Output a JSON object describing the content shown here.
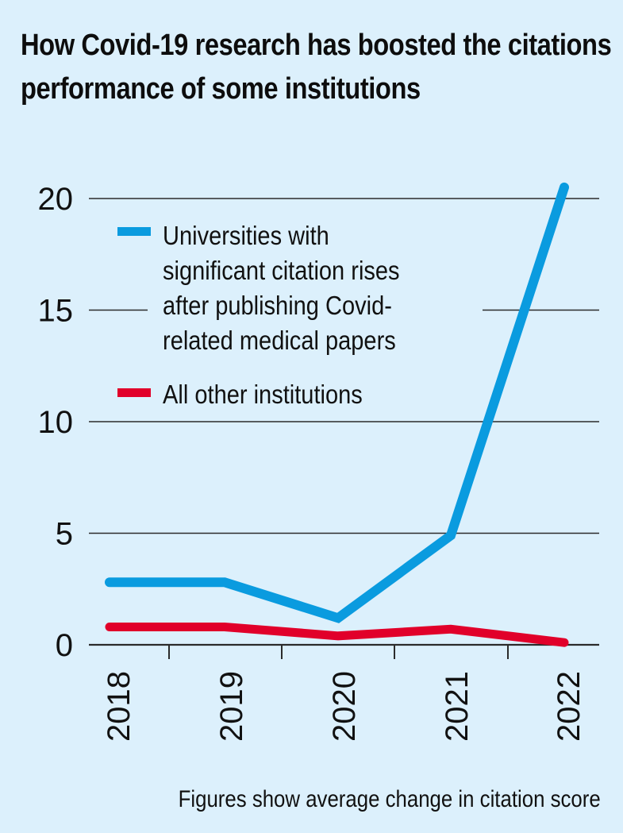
{
  "title": "How Covid-19 research has boosted the citations performance of some institutions",
  "footnote": "Figures show average change in citation score",
  "colors": {
    "background": "#dcf0fc",
    "series_universities": "#0a9bdf",
    "series_others": "#e1002a",
    "gridline": "#2b2b2b"
  },
  "legend": {
    "items": [
      {
        "label_lines": [
          "Universities with",
          "significant citation rises",
          "after publishing Covid-",
          "related medical papers"
        ],
        "color": "#0a9bdf"
      },
      {
        "label_lines": [
          "All other institutions"
        ],
        "color": "#e1002a"
      }
    ]
  },
  "chart_data": {
    "type": "line",
    "title": "How Covid-19 research has boosted the citations performance of some institutions",
    "subtitle": "",
    "xlabel": "",
    "ylabel": "",
    "note": "Figures show average change in citation score",
    "categories": [
      "2018",
      "2019",
      "2020",
      "2021",
      "2022"
    ],
    "series": [
      {
        "name": "Universities with significant citation rises after publishing Covid-related medical papers",
        "color": "#0a9bdf",
        "values": [
          2.8,
          2.8,
          1.2,
          4.9,
          20.5
        ]
      },
      {
        "name": "All other institutions",
        "color": "#e1002a",
        "values": [
          0.8,
          0.8,
          0.4,
          0.7,
          0.1
        ]
      }
    ],
    "yticks": [
      0,
      5,
      10,
      15,
      20
    ],
    "ylim": [
      0,
      20.5
    ],
    "grid": true,
    "legend_position": "upper-left inside plot"
  }
}
